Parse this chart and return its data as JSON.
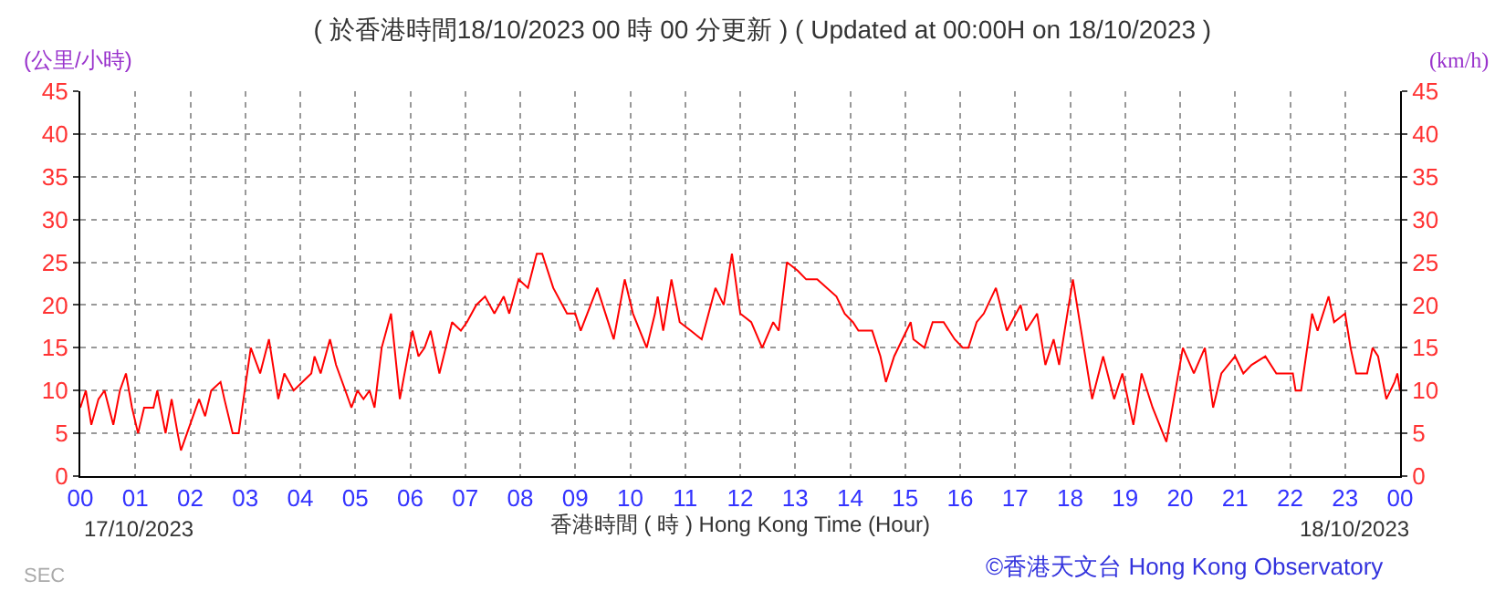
{
  "chart_data": {
    "type": "line",
    "title": "( 於香港時間18/10/2023 00 時 00 分更新 ) ( Updated at 00:00H on 18/10/2023 )",
    "xlabel": "香港時間 ( 時 ) Hong Kong Time (Hour)",
    "ylabel": "(公里/小時)",
    "y2label": "(km/h)",
    "annotations": [
      "17/10/2023",
      "18/10/2023",
      "SEC",
      "©香港天文台 Hong Kong Observatory"
    ],
    "x": [
      0,
      0.1,
      0.2,
      0.33,
      0.44,
      0.6,
      0.72,
      0.83,
      0.94,
      1.05,
      1.16,
      1.33,
      1.4,
      1.55,
      1.66,
      1.77,
      1.83,
      1.94,
      2.16,
      2.27,
      2.38,
      2.55,
      2.62,
      2.77,
      2.88,
      2.99,
      3.1,
      3.27,
      3.43,
      3.6,
      3.71,
      3.88,
      4.04,
      4.2,
      4.26,
      4.37,
      4.54,
      4.65,
      4.82,
      4.93,
      5.04,
      5.15,
      5.26,
      5.35,
      5.48,
      5.65,
      5.81,
      6.04,
      6.15,
      6.26,
      6.37,
      6.53,
      6.76,
      6.92,
      7.03,
      7.2,
      7.36,
      7.53,
      7.7,
      7.8,
      7.97,
      8.14,
      8.3,
      8.4,
      8.6,
      8.85,
      9.0,
      9.1,
      9.4,
      9.55,
      9.7,
      9.9,
      10.05,
      10.3,
      10.45,
      10.5,
      10.6,
      10.75,
      10.9,
      11.1,
      11.3,
      11.55,
      11.7,
      11.85,
      12.0,
      12.2,
      12.4,
      12.6,
      12.7,
      12.85,
      13.05,
      13.2,
      13.4,
      13.75,
      13.9,
      14.05,
      14.15,
      14.4,
      14.55,
      14.65,
      14.8,
      15.1,
      15.15,
      15.35,
      15.5,
      15.7,
      15.9,
      16.05,
      16.15,
      16.3,
      16.43,
      16.65,
      16.85,
      17.1,
      17.2,
      17.4,
      17.55,
      17.7,
      17.8,
      17.95,
      18.05,
      18.4,
      18.6,
      18.8,
      18.95,
      19.15,
      19.3,
      19.5,
      19.75,
      20.05,
      20.25,
      20.45,
      20.6,
      20.75,
      21.0,
      21.15,
      21.3,
      21.55,
      21.75,
      22.05,
      22.1,
      22.2,
      22.4,
      22.5,
      22.7,
      22.8,
      23.0,
      23.1,
      23.2,
      23.4,
      23.5,
      23.6,
      23.75,
      23.9,
      23.95,
      24
    ],
    "series": [
      {
        "color": "#ff0000",
        "values": [
          8,
          10,
          6,
          9,
          10,
          6,
          10,
          12,
          8,
          5,
          8,
          8,
          10,
          5,
          9,
          5,
          3,
          5,
          9,
          7,
          10,
          11,
          9,
          5,
          5,
          10,
          15,
          12,
          16,
          9,
          12,
          10,
          11,
          12,
          14,
          12,
          16,
          13,
          10,
          8,
          10,
          9,
          10,
          8,
          15,
          19,
          9,
          17,
          14,
          15,
          17,
          12,
          18,
          17,
          18,
          20,
          21,
          19,
          21,
          19,
          23,
          22,
          26,
          26,
          22,
          19,
          19,
          17,
          22,
          19,
          16,
          23,
          19,
          15,
          19,
          21,
          17,
          23,
          18,
          17,
          16,
          22,
          20,
          26,
          19,
          18,
          15,
          18,
          17,
          25,
          24,
          23,
          23,
          21,
          19,
          18,
          17,
          17,
          14,
          11,
          14,
          18,
          16,
          15,
          18,
          18,
          16,
          15,
          15,
          18,
          19,
          22,
          17,
          20,
          17,
          19,
          13,
          16,
          13,
          19,
          23,
          9,
          14,
          9,
          12,
          6,
          12,
          8,
          4,
          15,
          12,
          15,
          8,
          12,
          14,
          12,
          13,
          14,
          12,
          12,
          10,
          10,
          19,
          17,
          21,
          18,
          19,
          15,
          12,
          12,
          15,
          14,
          9,
          11,
          12,
          10
        ]
      }
    ],
    "xlim": [
      0,
      24
    ],
    "xticks": [
      {
        "value": 0,
        "label": "00"
      },
      {
        "value": 1,
        "label": "01"
      },
      {
        "value": 2,
        "label": "02"
      },
      {
        "value": 3,
        "label": "03"
      },
      {
        "value": 4,
        "label": "04"
      },
      {
        "value": 5,
        "label": "05"
      },
      {
        "value": 6,
        "label": "06"
      },
      {
        "value": 7,
        "label": "07"
      },
      {
        "value": 8,
        "label": "08"
      },
      {
        "value": 9,
        "label": "09"
      },
      {
        "value": 10,
        "label": "10"
      },
      {
        "value": 11,
        "label": "11"
      },
      {
        "value": 12,
        "label": "12"
      },
      {
        "value": 13,
        "label": "13"
      },
      {
        "value": 14,
        "label": "14"
      },
      {
        "value": 15,
        "label": "15"
      },
      {
        "value": 16,
        "label": "16"
      },
      {
        "value": 17,
        "label": "17"
      },
      {
        "value": 18,
        "label": "18"
      },
      {
        "value": 19,
        "label": "19"
      },
      {
        "value": 20,
        "label": "20"
      },
      {
        "value": 21,
        "label": "21"
      },
      {
        "value": 22,
        "label": "22"
      },
      {
        "value": 23,
        "label": "23"
      },
      {
        "value": 24,
        "label": "00"
      }
    ],
    "ylim": [
      0,
      45
    ],
    "yticks": [
      0,
      5,
      10,
      15,
      20,
      25,
      30,
      35,
      40,
      45
    ],
    "y2lim": [
      0,
      45
    ],
    "y2ticks": [
      0,
      5,
      10,
      15,
      20,
      25,
      30,
      35,
      40,
      45
    ],
    "grid": true
  }
}
